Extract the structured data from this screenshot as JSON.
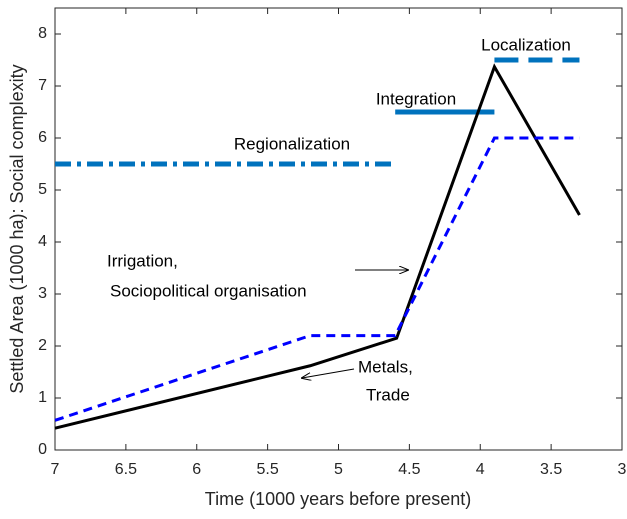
{
  "chart_data": {
    "type": "line",
    "xlabel": "Time (1000 years before present)",
    "ylabel": "Settled Area (1000 ha): Social complexity",
    "xlim": [
      7,
      3
    ],
    "xticks": [
      7,
      6.5,
      6,
      5.5,
      5,
      4.5,
      4,
      3.5,
      3
    ],
    "ylim": [
      0,
      8.5
    ],
    "yticks": [
      0,
      1,
      2,
      3,
      4,
      5,
      6,
      7,
      8
    ],
    "series": [
      {
        "color": "#000000",
        "style": "solid",
        "x": [
          7,
          5.2,
          4.59,
          3.9,
          3.3
        ],
        "values": [
          0.42,
          1.62,
          2.15,
          7.37,
          4.52
        ]
      },
      {
        "color": "#0000ff",
        "style": "dashed",
        "x": [
          7,
          5.2,
          4.6,
          3.9,
          3.3
        ],
        "values": [
          0.57,
          2.2,
          2.2,
          6,
          6
        ]
      }
    ],
    "phases": [
      {
        "label": "Regionalization",
        "color": "#0072bd",
        "style": "dashdot",
        "x": [
          7,
          4.6
        ],
        "values": [
          5.5,
          5.5
        ]
      },
      {
        "label": "Integration",
        "color": "#0072bd",
        "style": "solid",
        "x": [
          4.6,
          3.9
        ],
        "values": [
          6.5,
          6.5
        ]
      },
      {
        "label": "Localization",
        "color": "#0072bd",
        "style": "dashed",
        "x": [
          3.9,
          3.3
        ],
        "values": [
          7.5,
          7.5
        ]
      }
    ],
    "annotations": [
      {
        "lines": [
          "Irrigation,",
          "Sociopolitical organisation"
        ]
      },
      {
        "lines": [
          "Metals,",
          "Trade"
        ]
      }
    ]
  }
}
